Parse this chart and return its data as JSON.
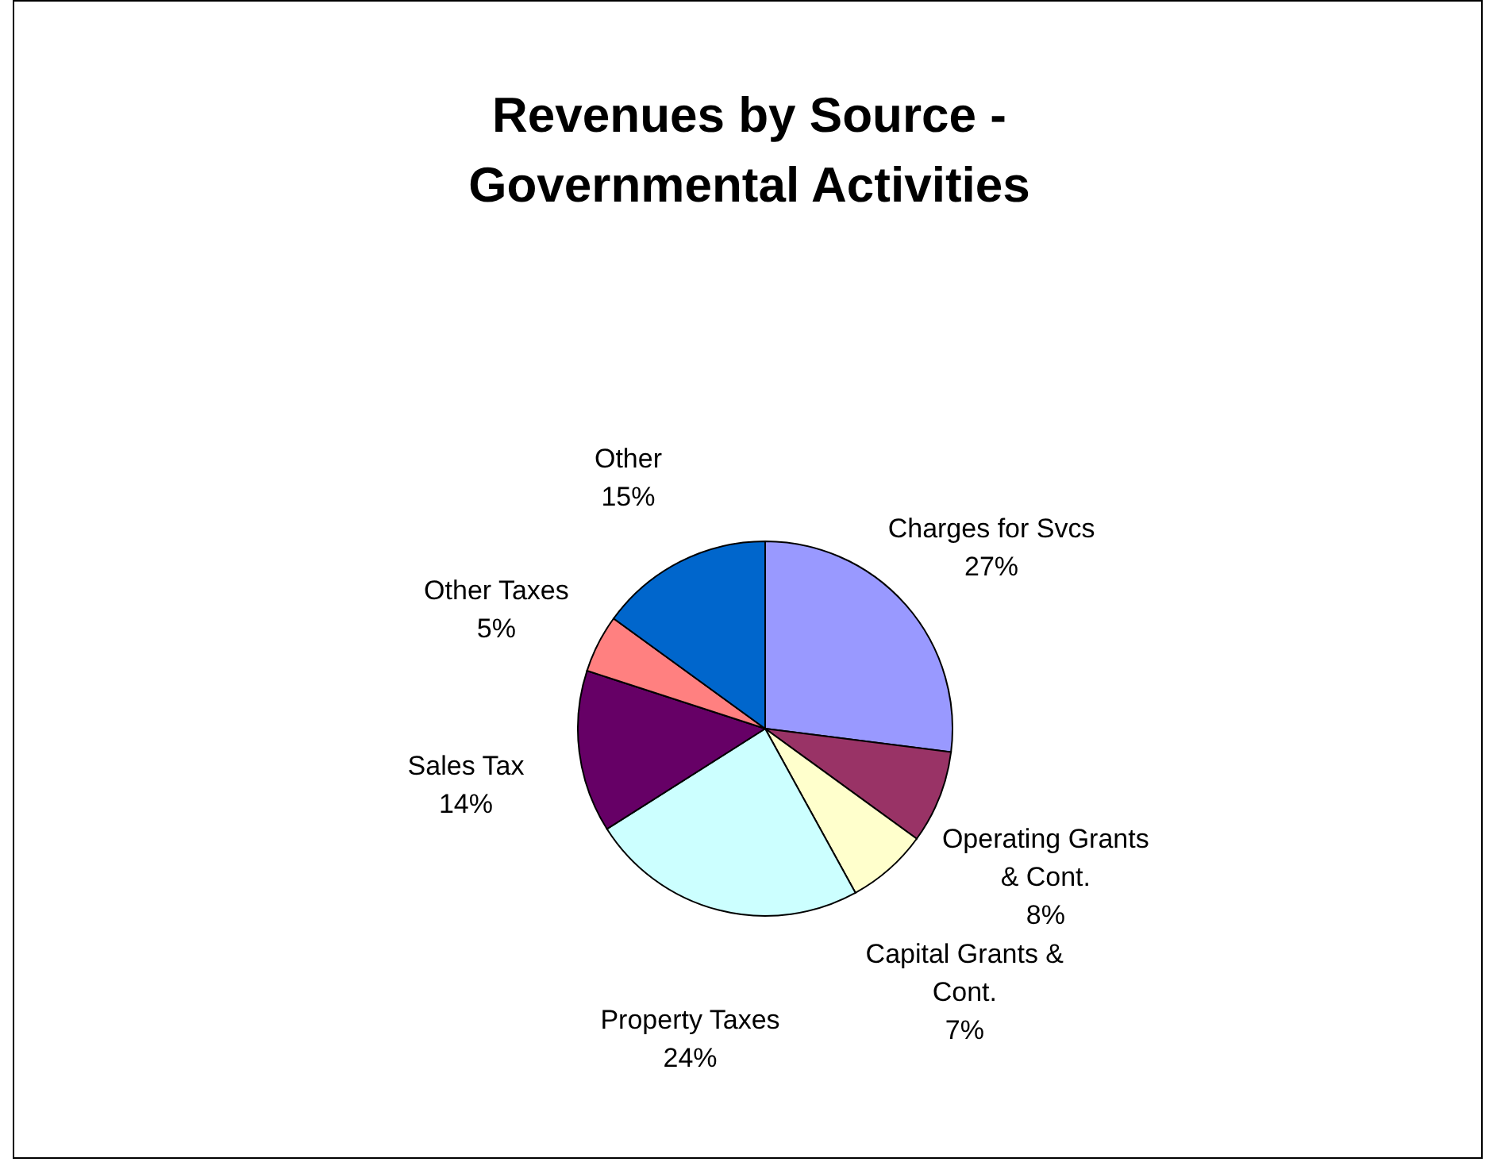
{
  "chart_data": {
    "type": "pie",
    "title": "Revenues by Source - Governmental Activities",
    "categories": [
      "Charges for Svcs",
      "Operating Grants & Cont.",
      "Capital Grants & Cont.",
      "Property Taxes",
      "Sales Tax",
      "Other Taxes",
      "Other"
    ],
    "values": [
      27,
      8,
      7,
      24,
      14,
      5,
      15
    ],
    "value_labels": [
      "27%",
      "8%",
      "7%",
      "24%",
      "14%",
      "5%",
      "15%"
    ],
    "colors": [
      "#9999ff",
      "#993366",
      "#ffffcc",
      "#ccffff",
      "#660066",
      "#ff8080",
      "#0066cc"
    ],
    "legend": false
  }
}
